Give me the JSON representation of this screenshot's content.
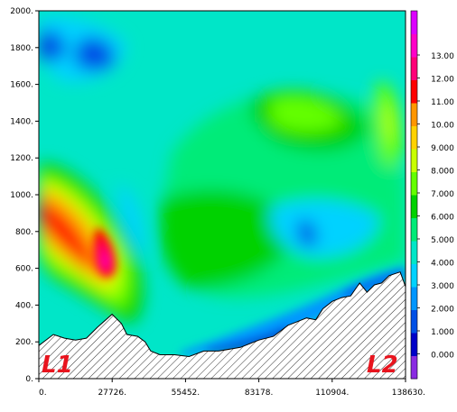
{
  "chart_data": {
    "type": "heatmap",
    "title": "",
    "xlabel": "",
    "ylabel": "",
    "xlim": [
      0,
      138630
    ],
    "ylim": [
      0,
      2000
    ],
    "x_ticks": [
      "0.",
      "27726.",
      "55452.",
      "83178.",
      "110904.",
      "138630."
    ],
    "y_ticks": [
      "0.",
      "200.",
      "400.",
      "600.",
      "800.",
      "1000.",
      "1200.",
      "1400.",
      "1600.",
      "1800.",
      "2000."
    ],
    "x_tick_values": [
      0,
      27726,
      55452,
      83178,
      110904,
      138630
    ],
    "y_tick_values": [
      0,
      200,
      400,
      600,
      800,
      1000,
      1200,
      1400,
      1600,
      1800,
      2000
    ],
    "colorbar": {
      "labels": [
        "0.000",
        "1.000",
        "2.000",
        "3.000",
        "4.000",
        "5.000",
        "6.000",
        "7.000",
        "8.000",
        "9.000",
        "10.00",
        "11.00",
        "12.00",
        "13.00"
      ],
      "levels": [
        0,
        1,
        2,
        3,
        4,
        5,
        6,
        7,
        8,
        9,
        10,
        11,
        12,
        13
      ],
      "colors": [
        "#8a2be2",
        "#0000c8",
        "#0050e6",
        "#0096ff",
        "#00d2ff",
        "#00e6c8",
        "#00eb78",
        "#00d200",
        "#64ff00",
        "#c8ff00",
        "#ffd200",
        "#ff9600",
        "#ff0000",
        "#ff0078",
        "#ff00c8",
        "#dc00ff"
      ]
    },
    "terrain": {
      "x": [
        0,
        5500,
        9700,
        13900,
        18000,
        22200,
        27700,
        31200,
        33300,
        37400,
        40200,
        42300,
        45800,
        51300,
        56800,
        62400,
        67900,
        76200,
        83200,
        88700,
        94200,
        97700,
        101200,
        104700,
        107400,
        110900,
        114400,
        117900,
        121300,
        124100,
        126900,
        129600,
        132400,
        134500,
        136600,
        138630
      ],
      "elev": [
        180,
        240,
        220,
        210,
        220,
        280,
        350,
        300,
        240,
        230,
        200,
        150,
        130,
        130,
        120,
        150,
        150,
        170,
        210,
        230,
        290,
        310,
        330,
        320,
        380,
        420,
        440,
        450,
        520,
        470,
        510,
        520,
        560,
        570,
        580,
        500
      ]
    },
    "labels": {
      "left": "L1",
      "right": "L2"
    }
  }
}
